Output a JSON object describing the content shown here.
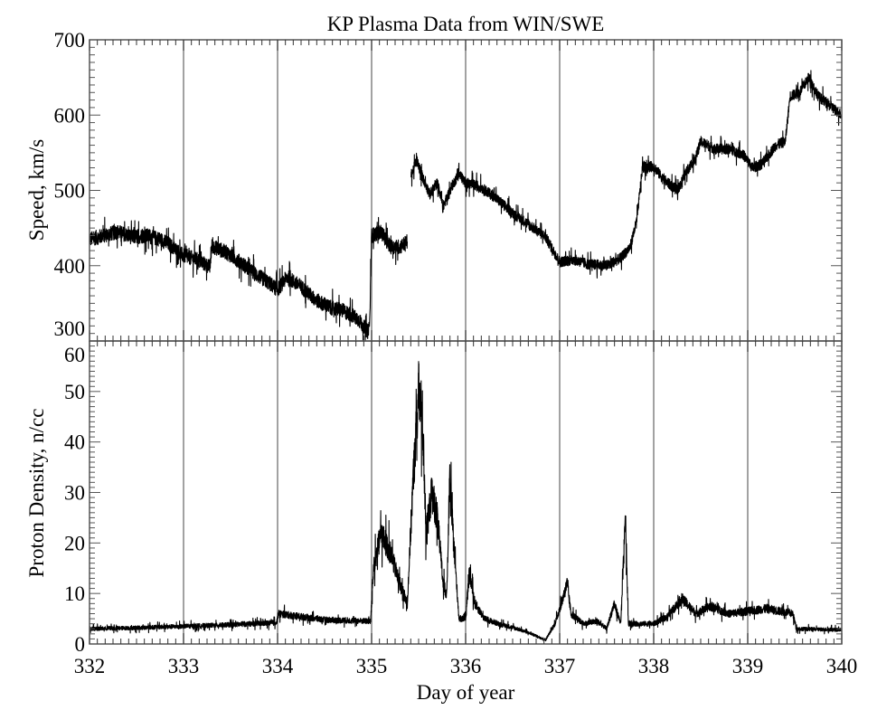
{
  "chart_data": [
    {
      "type": "line",
      "title": "KP Plasma Data from WIN/SWE",
      "xlabel": "Day of year",
      "ylabel": "Speed, km/s",
      "xlim": [
        332,
        340
      ],
      "ylim": [
        300,
        700
      ],
      "xticks": [
        "332",
        "333",
        "334",
        "335",
        "336",
        "337",
        "338",
        "339",
        "340"
      ],
      "yticks": [
        "300",
        "400",
        "500",
        "600",
        "700"
      ],
      "day_gridlines": true,
      "series": [
        {
          "name": "speed",
          "color": "#000000",
          "segments": [
            {
              "noise": 14,
              "points": [
                [
                  332.0,
                  435
                ],
                [
                  332.15,
                  440
                ],
                [
                  332.3,
                  445
                ],
                [
                  332.45,
                  438
                ],
                [
                  332.6,
                  440
                ],
                [
                  332.75,
                  435
                ],
                [
                  332.85,
                  428
                ],
                [
                  333.0,
                  413
                ],
                [
                  333.15,
                  408
                ],
                [
                  333.28,
                  398
                ],
                [
                  333.3,
                  426
                ],
                [
                  333.45,
                  418
                ],
                [
                  333.6,
                  405
                ],
                [
                  333.75,
                  390
                ],
                [
                  333.9,
                  378
                ],
                [
                  334.0,
                  368
                ],
                [
                  334.1,
                  385
                ],
                [
                  334.25,
                  372
                ],
                [
                  334.4,
                  355
                ],
                [
                  334.55,
                  345
                ],
                [
                  334.7,
                  340
                ],
                [
                  334.85,
                  330
                ],
                [
                  334.96,
                  312
                ],
                [
                  334.98,
                  325
                ],
                [
                  335.0,
                  440
                ],
                [
                  335.1,
                  445
                ],
                [
                  335.2,
                  425
                ],
                [
                  335.3,
                  425
                ],
                [
                  335.38,
                  432
                ]
              ]
            },
            {
              "noise": 10,
              "points": [
                [
                  335.42,
                  520
                ],
                [
                  335.48,
                  540
                ],
                [
                  335.55,
                  515
                ],
                [
                  335.62,
                  495
                ],
                [
                  335.7,
                  510
                ],
                [
                  335.76,
                  478
                ],
                [
                  335.85,
                  505
                ],
                [
                  335.93,
                  522
                ],
                [
                  336.0,
                  510
                ],
                [
                  336.15,
                  505
                ],
                [
                  336.3,
                  492
                ],
                [
                  336.5,
                  470
                ],
                [
                  336.7,
                  452
                ],
                [
                  336.85,
                  438
                ],
                [
                  337.0,
                  405
                ],
                [
                  337.15,
                  408
                ],
                [
                  337.3,
                  402
                ],
                [
                  337.5,
                  400
                ],
                [
                  337.65,
                  410
                ],
                [
                  337.75,
                  425
                ],
                [
                  337.82,
                  460
                ],
                [
                  337.88,
                  530
                ],
                [
                  338.0,
                  532
                ],
                [
                  338.1,
                  515
                ],
                [
                  338.25,
                  500
                ],
                [
                  338.35,
                  525
                ],
                [
                  338.45,
                  545
                ],
                [
                  338.5,
                  565
                ],
                [
                  338.65,
                  555
                ],
                [
                  338.8,
                  555
                ],
                [
                  338.95,
                  548
                ],
                [
                  339.05,
                  530
                ],
                [
                  339.15,
                  535
                ],
                [
                  339.3,
                  560
                ],
                [
                  339.4,
                  565
                ],
                [
                  339.45,
                  625
                ],
                [
                  339.55,
                  630
                ],
                [
                  339.65,
                  650
                ],
                [
                  339.75,
                  625
                ],
                [
                  339.9,
                  610
                ],
                [
                  340.0,
                  600
                ]
              ]
            }
          ]
        }
      ]
    },
    {
      "type": "line",
      "xlabel": "Day of year",
      "ylabel": "Proton Density, n/cc",
      "xlim": [
        332,
        340
      ],
      "ylim": [
        0,
        60
      ],
      "xticks": [
        "332",
        "333",
        "334",
        "335",
        "336",
        "337",
        "338",
        "339",
        "340"
      ],
      "yticks": [
        "0",
        "10",
        "20",
        "30",
        "40",
        "50",
        "60"
      ],
      "day_gridlines": true,
      "series": [
        {
          "name": "density",
          "color": "#000000",
          "segments": [
            {
              "noise": 0.9,
              "points": [
                [
                  332.0,
                  3.0
                ],
                [
                  332.5,
                  3.2
                ],
                [
                  333.0,
                  3.5
                ],
                [
                  333.5,
                  3.8
                ],
                [
                  333.99,
                  4.2
                ],
                [
                  334.01,
                  6.0
                ],
                [
                  334.5,
                  4.8
                ],
                [
                  334.99,
                  4.5
                ],
                [
                  335.02,
                  15
                ],
                [
                  335.1,
                  22
                ],
                [
                  335.2,
                  18
                ],
                [
                  335.3,
                  12
                ],
                [
                  335.38,
                  8
                ],
                [
                  335.41,
                  20
                ],
                [
                  335.44,
                  32
                ],
                [
                  335.5,
                  50
                ],
                [
                  335.54,
                  45
                ],
                [
                  335.58,
                  22
                ],
                [
                  335.64,
                  30
                ],
                [
                  335.7,
                  25
                ],
                [
                  335.76,
                  12
                ],
                [
                  335.8,
                  10
                ],
                [
                  335.83,
                  32
                ],
                [
                  335.88,
                  18
                ],
                [
                  335.93,
                  5
                ],
                [
                  336.0,
                  5
                ],
                [
                  336.04,
                  14
                ],
                [
                  336.1,
                  8
                ],
                [
                  336.2,
                  5
                ],
                [
                  336.35,
                  4
                ],
                [
                  336.55,
                  3
                ],
                [
                  336.7,
                  2
                ],
                [
                  336.85,
                  0.8
                ],
                [
                  336.95,
                  4
                ],
                [
                  337.0,
                  7
                ],
                [
                  337.08,
                  12
                ],
                [
                  337.12,
                  6
                ],
                [
                  337.25,
                  4
                ],
                [
                  337.4,
                  4.5
                ],
                [
                  337.5,
                  3
                ],
                [
                  337.58,
                  8
                ],
                [
                  337.65,
                  4
                ],
                [
                  337.7,
                  25
                ],
                [
                  337.73,
                  4
                ],
                [
                  338.0,
                  4
                ],
                [
                  338.15,
                  5.5
                ],
                [
                  338.3,
                  9
                ],
                [
                  338.45,
                  6
                ],
                [
                  338.6,
                  7.5
                ],
                [
                  338.8,
                  6
                ],
                [
                  339.0,
                  6.5
                ],
                [
                  339.2,
                  7
                ],
                [
                  339.48,
                  6
                ],
                [
                  339.52,
                  3
                ],
                [
                  340.0,
                  2.8
                ]
              ]
            }
          ]
        }
      ]
    }
  ]
}
